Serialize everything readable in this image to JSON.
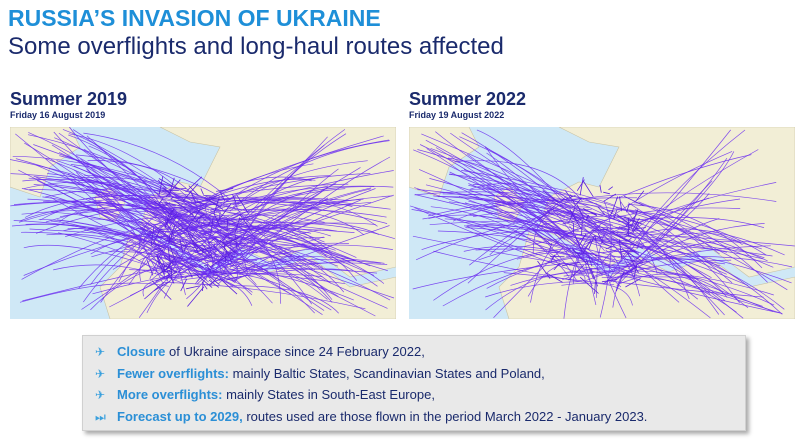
{
  "header": {
    "title": "RUSSIA’S INVASION OF UKRAINE",
    "subtitle": "Some overflights and long-haul routes affected"
  },
  "panels": [
    {
      "heading": "Summer 2019",
      "date": "Friday 16 August 2019"
    },
    {
      "heading": "Summer 2022",
      "date": "Friday 19 August 2022"
    }
  ],
  "bullets": [
    {
      "highlight": "Closure",
      "text": "of Ukraine airspace since 24 February 2022,"
    },
    {
      "highlight": "Fewer overflights:",
      "text": "mainly Baltic States, Scandinavian States and Poland,"
    },
    {
      "highlight": "More overflights:",
      "text": "mainly States in South-East Europe,"
    },
    {
      "highlight": "Forecast up to 2029,",
      "text": "routes used are those flown in the period March 2022 - January 2023."
    }
  ]
}
